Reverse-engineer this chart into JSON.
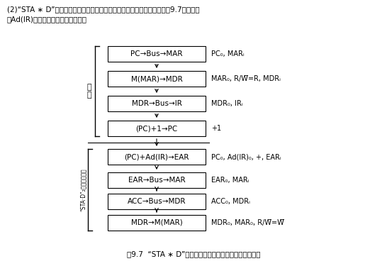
{
  "title_line1": "(2)“STA ∗ D”指令取指周期和执行周期的信息流程及相应的控制信号如图9.7所示，图",
  "title_line2": "中Ad(IR)为相对位移量的机器代码。",
  "caption": "图9.7  “STA ∗ D”指令周期的信息流程及相应的控制信号",
  "boxes": [
    {
      "label": "PC→Bus→MAR"
    },
    {
      "label": "M(MAR)→MDR"
    },
    {
      "label": "MDR→Bus→IR"
    },
    {
      "label": "(PC)+1→PC"
    },
    {
      "label": "(PC)+Ad(IR)→EAR"
    },
    {
      "label": "EAR→Bus→MAR"
    },
    {
      "label": "ACC→Bus→MDR"
    },
    {
      "label": "MDR→M(MAR)"
    }
  ],
  "signals": [
    "PC₀, MARᵢ",
    "MAR₀, R/W̅=R, MDRᵢ",
    "MDR₀, IRᵢ",
    "+1",
    "PC₀, Ad(IR)₀, +, EARᵢ",
    "EAR₀, MARᵢ",
    "ACC₀, MDRᵢ",
    "MDR₀, MAR₀, R/W̅=W̅"
  ],
  "fetch_label": "取\n指",
  "exec_label": "“STA·D”₂指令执行周期",
  "bg_color": "#ffffff",
  "box_edge_color": "#000000",
  "text_color": "#000000"
}
